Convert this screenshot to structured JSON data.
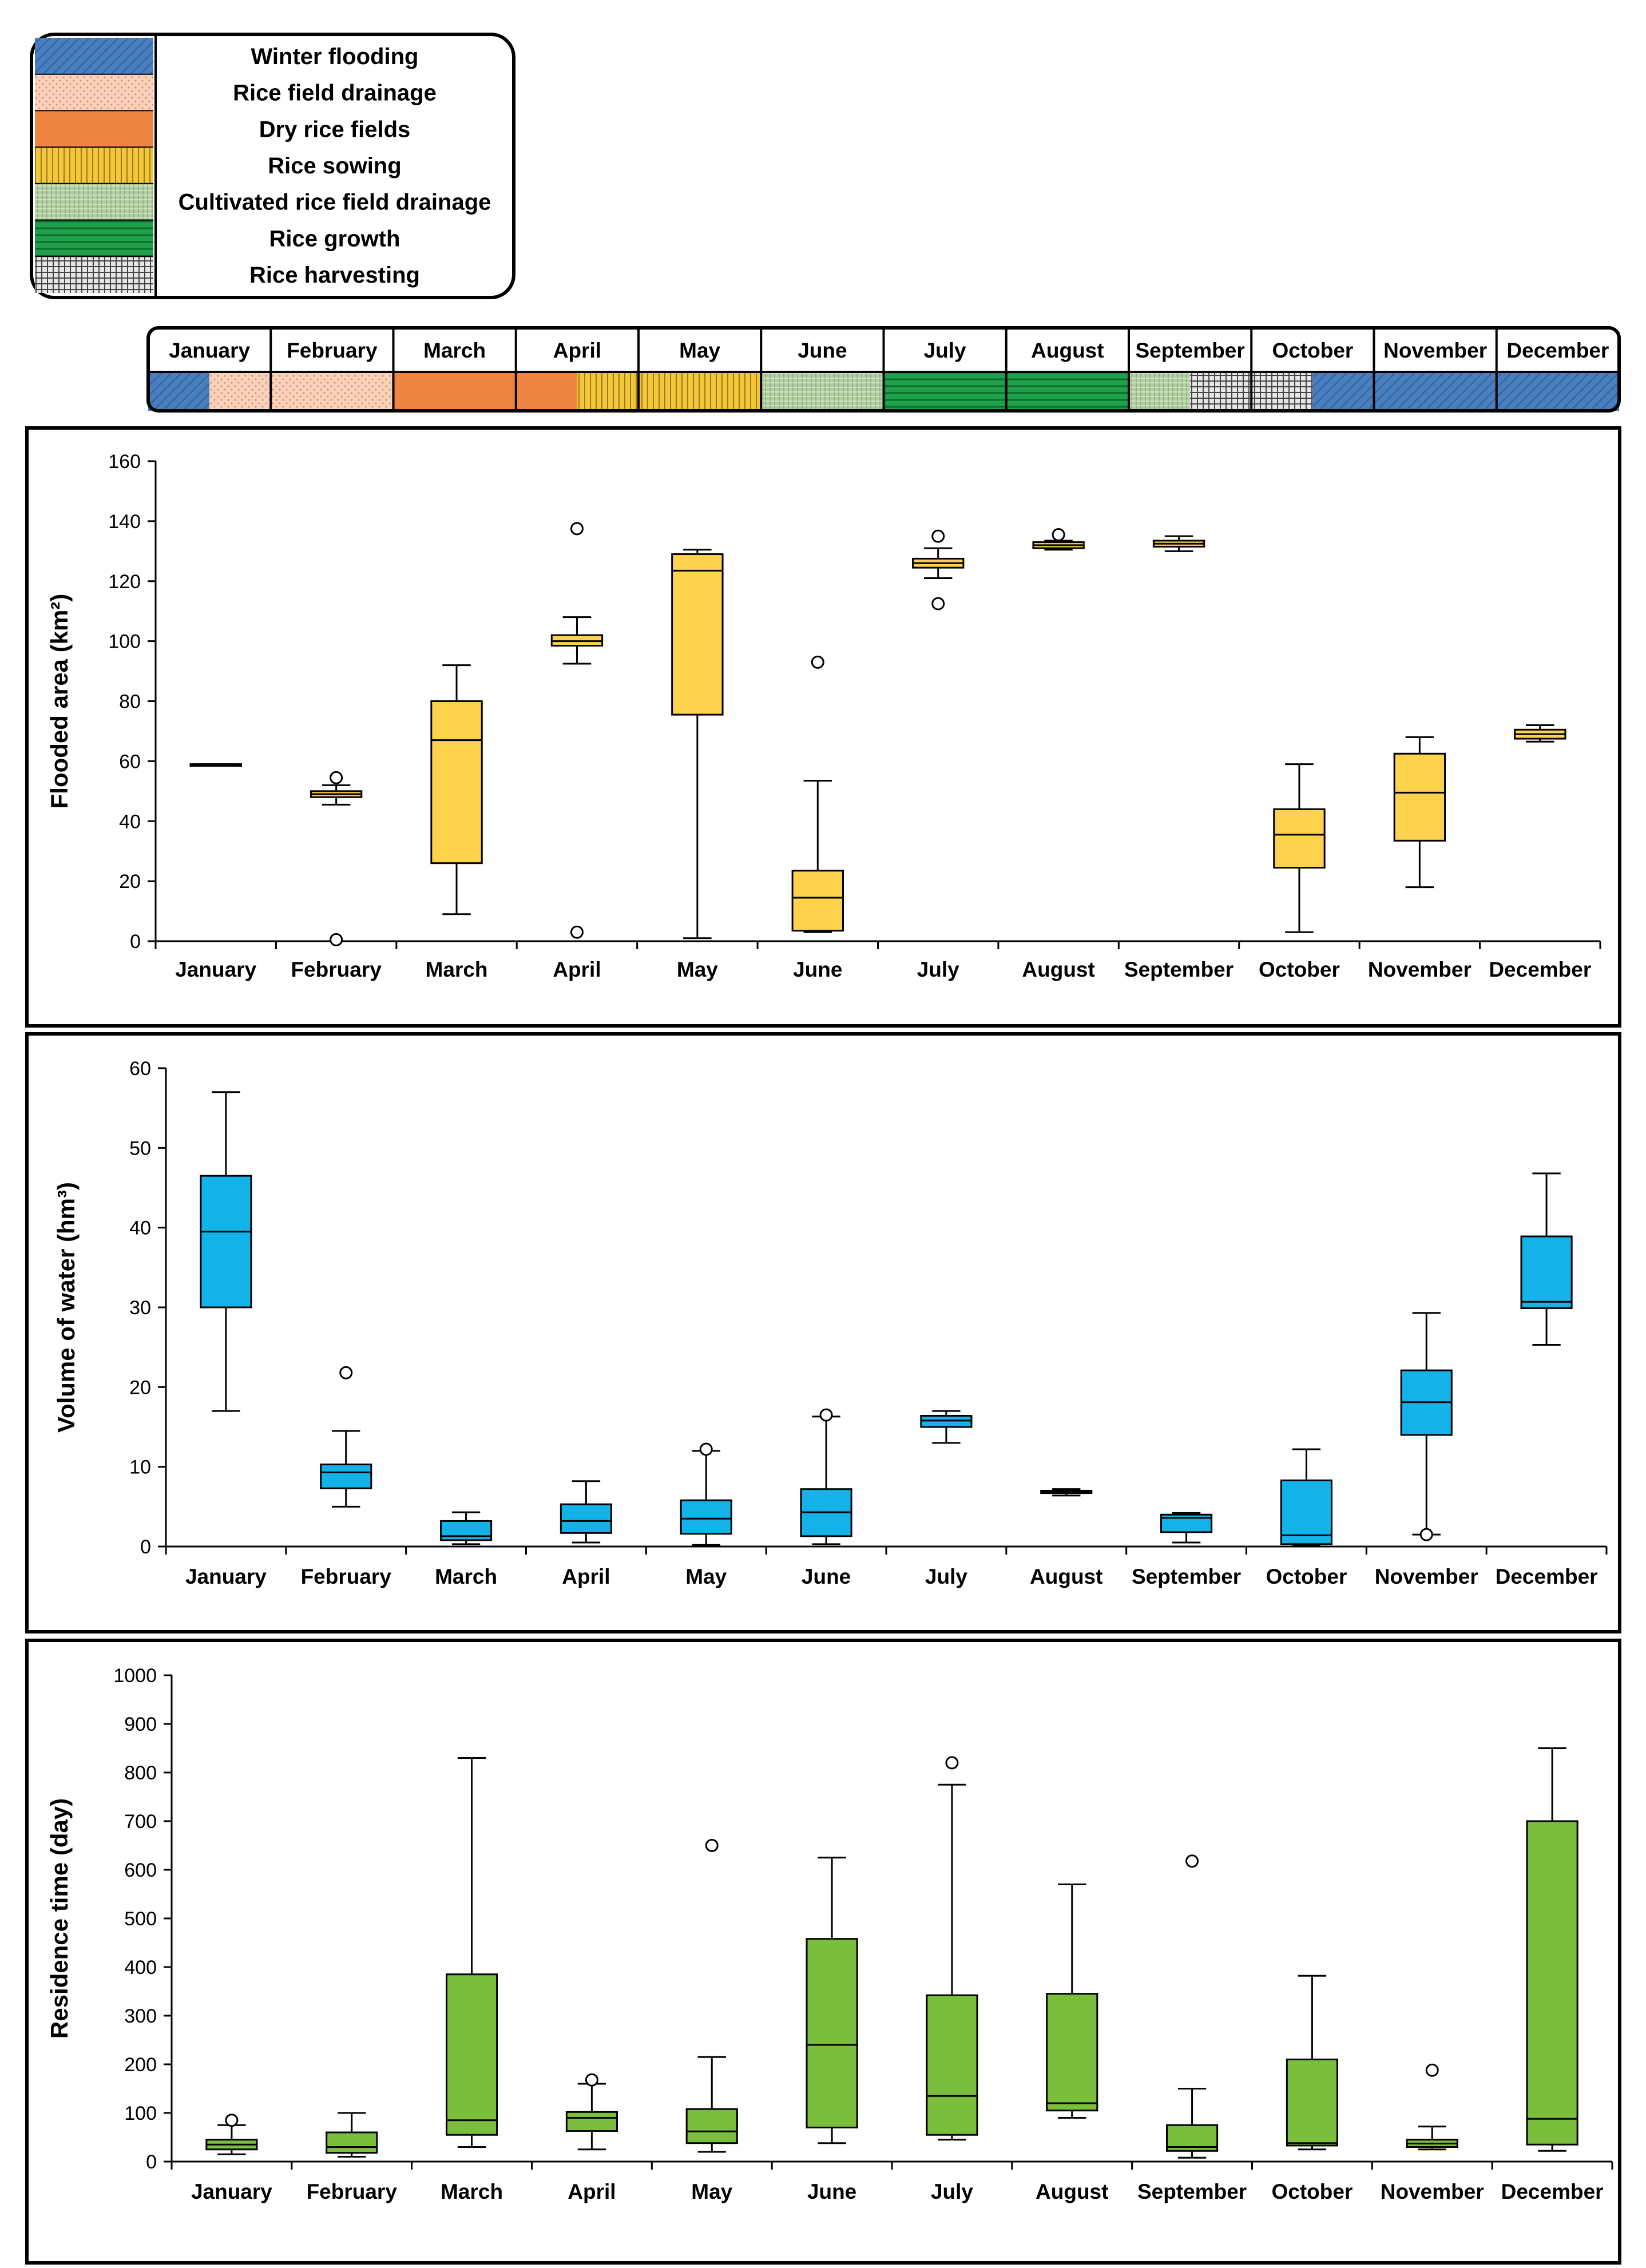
{
  "legend": {
    "items": [
      {
        "key": "winter",
        "label": "Winter flooding"
      },
      {
        "key": "drain",
        "label": "Rice field drainage"
      },
      {
        "key": "dry",
        "label": "Dry rice fields"
      },
      {
        "key": "sowing",
        "label": "Rice sowing"
      },
      {
        "key": "cultdrain",
        "label": "Cultivated rice field drainage"
      },
      {
        "key": "growth",
        "label": "Rice growth"
      },
      {
        "key": "harvest",
        "label": "Rice harvesting"
      }
    ],
    "colors": {
      "winter": "#4a7fbf",
      "drain": "#f6cbb1",
      "dry": "#ef8543",
      "sowing": "#f4c73a",
      "cultdrain": "#aac79a",
      "growth": "#1fa04a",
      "harvest": "#d8d8d8"
    }
  },
  "months": [
    "January",
    "February",
    "March",
    "April",
    "May",
    "June",
    "July",
    "August",
    "September",
    "October",
    "November",
    "December"
  ],
  "calendar": {
    "segments": [
      {
        "month": 0,
        "start": 0,
        "end": 0.5,
        "key": "winter"
      },
      {
        "month": 0,
        "start": 0.5,
        "end": 1,
        "key": "drain"
      },
      {
        "month": 1,
        "start": 0,
        "end": 1,
        "key": "drain"
      },
      {
        "month": 2,
        "start": 0,
        "end": 1,
        "key": "dry"
      },
      {
        "month": 3,
        "start": 0,
        "end": 0.5,
        "key": "dry"
      },
      {
        "month": 3,
        "start": 0.5,
        "end": 1,
        "key": "sowing"
      },
      {
        "month": 4,
        "start": 0,
        "end": 1,
        "key": "sowing"
      },
      {
        "month": 5,
        "start": 0,
        "end": 1,
        "key": "cultdrain"
      },
      {
        "month": 6,
        "start": 0,
        "end": 1,
        "key": "growth"
      },
      {
        "month": 7,
        "start": 0,
        "end": 1,
        "key": "growth"
      },
      {
        "month": 8,
        "start": 0,
        "end": 0.5,
        "key": "cultdrain"
      },
      {
        "month": 8,
        "start": 0.5,
        "end": 1,
        "key": "harvest"
      },
      {
        "month": 9,
        "start": 0,
        "end": 0.5,
        "key": "harvest"
      },
      {
        "month": 9,
        "start": 0.5,
        "end": 1,
        "key": "winter"
      },
      {
        "month": 10,
        "start": 0,
        "end": 1,
        "key": "winter"
      },
      {
        "month": 11,
        "start": 0,
        "end": 1,
        "key": "winter"
      }
    ]
  },
  "chart_data": [
    {
      "type": "boxplot",
      "id": "flooded",
      "ylabel": "Flooded area (km²)",
      "ylim": [
        0,
        160
      ],
      "yticks": [
        0,
        20,
        40,
        60,
        80,
        100,
        120,
        140,
        160
      ],
      "color": "#ffd24d",
      "categories": [
        "January",
        "February",
        "March",
        "April",
        "May",
        "June",
        "July",
        "August",
        "September",
        "October",
        "November",
        "December"
      ],
      "boxes": [
        {
          "min": 58.5,
          "q1": 58.5,
          "median": 59,
          "q3": 59,
          "max": 59,
          "outliers": []
        },
        {
          "min": 45.5,
          "q1": 48,
          "median": 49,
          "q3": 50,
          "max": 52,
          "outliers": [
            54.5,
            0.5
          ]
        },
        {
          "min": 9,
          "q1": 26,
          "median": 67,
          "q3": 80,
          "max": 92,
          "outliers": []
        },
        {
          "min": 92.5,
          "q1": 98.5,
          "median": 100,
          "q3": 102,
          "max": 108,
          "outliers": [
            137.5,
            3
          ]
        },
        {
          "min": 1,
          "q1": 75.5,
          "median": 123.5,
          "q3": 129,
          "max": 130.5,
          "outliers": []
        },
        {
          "min": 3,
          "q1": 3.5,
          "median": 14.5,
          "q3": 23.5,
          "max": 53.5,
          "outliers": [
            93
          ]
        },
        {
          "min": 121,
          "q1": 124.5,
          "median": 126,
          "q3": 127.5,
          "max": 131,
          "outliers": [
            135,
            112.5
          ]
        },
        {
          "min": 130.5,
          "q1": 131,
          "median": 132,
          "q3": 133,
          "max": 133.5,
          "outliers": [
            135.5
          ]
        },
        {
          "min": 130,
          "q1": 131.5,
          "median": 132.5,
          "q3": 133.5,
          "max": 135,
          "outliers": []
        },
        {
          "min": 3,
          "q1": 24.5,
          "median": 35.5,
          "q3": 44,
          "max": 59,
          "outliers": []
        },
        {
          "min": 18,
          "q1": 33.5,
          "median": 49.5,
          "q3": 62.5,
          "max": 68,
          "outliers": []
        },
        {
          "min": 66.5,
          "q1": 67.5,
          "median": 69,
          "q3": 70.5,
          "max": 72,
          "outliers": []
        }
      ]
    },
    {
      "type": "boxplot",
      "id": "volume",
      "ylabel": "Volume of water (hm³)",
      "ylim": [
        0,
        60
      ],
      "yticks": [
        0,
        10,
        20,
        30,
        40,
        50,
        60
      ],
      "color": "#13b2e9",
      "categories": [
        "January",
        "February",
        "March",
        "April",
        "May",
        "June",
        "July",
        "August",
        "September",
        "October",
        "November",
        "December"
      ],
      "boxes": [
        {
          "min": 17,
          "q1": 30,
          "median": 39.5,
          "q3": 46.5,
          "max": 57,
          "outliers": []
        },
        {
          "min": 5,
          "q1": 7.3,
          "median": 9.3,
          "q3": 10.3,
          "max": 14.5,
          "outliers": [
            21.8
          ]
        },
        {
          "min": 0.3,
          "q1": 0.8,
          "median": 1.3,
          "q3": 3.2,
          "max": 4.3,
          "outliers": []
        },
        {
          "min": 0.5,
          "q1": 1.7,
          "median": 3.2,
          "q3": 5.3,
          "max": 8.2,
          "outliers": []
        },
        {
          "min": 0.2,
          "q1": 1.6,
          "median": 3.5,
          "q3": 5.8,
          "max": 12,
          "outliers": [
            12.2
          ]
        },
        {
          "min": 0.3,
          "q1": 1.3,
          "median": 4.3,
          "q3": 7.2,
          "max": 16.3,
          "outliers": [
            16.5
          ]
        },
        {
          "min": 13,
          "q1": 15,
          "median": 15.8,
          "q3": 16.4,
          "max": 17,
          "outliers": []
        },
        {
          "min": 6.4,
          "q1": 6.7,
          "median": 6.9,
          "q3": 7,
          "max": 7.2,
          "outliers": []
        },
        {
          "min": 0.5,
          "q1": 1.8,
          "median": 3.6,
          "q3": 4,
          "max": 4.2,
          "outliers": []
        },
        {
          "min": 0.1,
          "q1": 0.3,
          "median": 1.4,
          "q3": 8.3,
          "max": 12.2,
          "outliers": []
        },
        {
          "min": 1.5,
          "q1": 14,
          "median": 18.1,
          "q3": 22.1,
          "max": 29.3,
          "outliers": [
            1.5
          ]
        },
        {
          "min": 25.3,
          "q1": 29.9,
          "median": 30.7,
          "q3": 38.9,
          "max": 46.8,
          "outliers": []
        }
      ]
    },
    {
      "type": "boxplot",
      "id": "residence",
      "ylabel": "Residence time (day)",
      "ylim": [
        0,
        1000
      ],
      "yticks": [
        0,
        100,
        200,
        300,
        400,
        500,
        600,
        700,
        800,
        900,
        1000
      ],
      "color": "#7abe3c",
      "categories": [
        "January",
        "February",
        "March",
        "April",
        "May",
        "June",
        "July",
        "August",
        "September",
        "October",
        "November",
        "December"
      ],
      "boxes": [
        {
          "min": 15,
          "q1": 25,
          "median": 35,
          "q3": 45,
          "max": 75,
          "outliers": [
            85
          ]
        },
        {
          "min": 10,
          "q1": 18,
          "median": 30,
          "q3": 60,
          "max": 100,
          "outliers": []
        },
        {
          "min": 30,
          "q1": 55,
          "median": 85,
          "q3": 385,
          "max": 830,
          "outliers": []
        },
        {
          "min": 25,
          "q1": 63,
          "median": 90,
          "q3": 102,
          "max": 160,
          "outliers": [
            168
          ]
        },
        {
          "min": 20,
          "q1": 38,
          "median": 62,
          "q3": 108,
          "max": 215,
          "outliers": [
            650
          ]
        },
        {
          "min": 38,
          "q1": 70,
          "median": 240,
          "q3": 458,
          "max": 625,
          "outliers": []
        },
        {
          "min": 45,
          "q1": 55,
          "median": 135,
          "q3": 342,
          "max": 775,
          "outliers": [
            820
          ]
        },
        {
          "min": 90,
          "q1": 105,
          "median": 120,
          "q3": 345,
          "max": 570,
          "outliers": []
        },
        {
          "min": 8,
          "q1": 22,
          "median": 30,
          "q3": 75,
          "max": 150,
          "outliers": [
            618
          ]
        },
        {
          "min": 25,
          "q1": 33,
          "median": 38,
          "q3": 210,
          "max": 382,
          "outliers": []
        },
        {
          "min": 25,
          "q1": 30,
          "median": 37,
          "q3": 45,
          "max": 72,
          "outliers": [
            188
          ]
        },
        {
          "min": 22,
          "q1": 35,
          "median": 88,
          "q3": 700,
          "max": 850,
          "outliers": []
        }
      ]
    }
  ]
}
